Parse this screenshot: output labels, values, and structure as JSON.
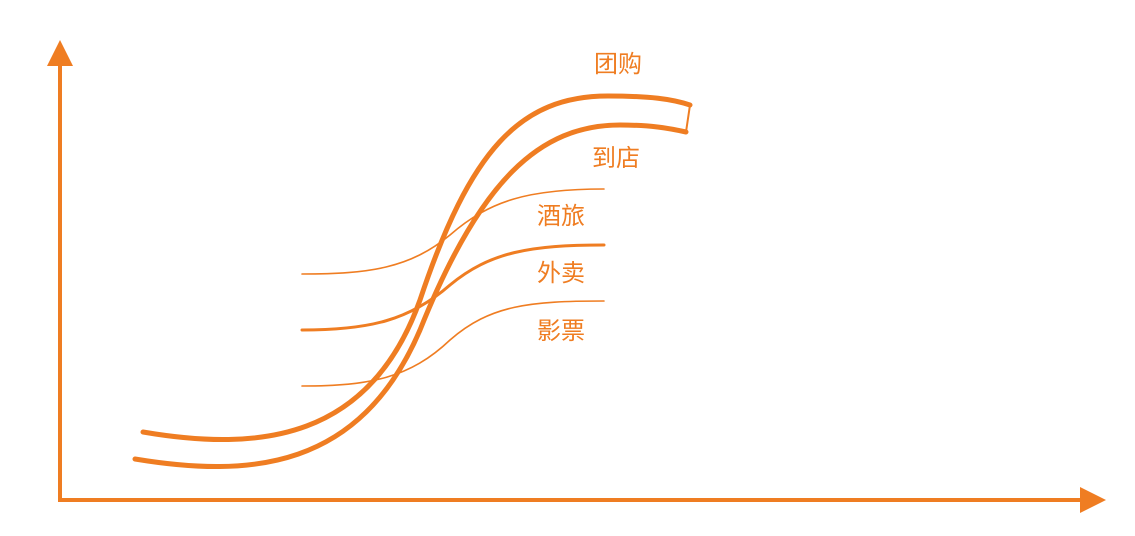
{
  "colors": {
    "accent": "#ef7d22",
    "background": "#ffffff"
  },
  "labels": {
    "group_buying": "团购",
    "in_store": "到店",
    "hotel_travel": "酒旅",
    "food_delivery": "外卖",
    "movie_tickets": "影票"
  },
  "axes": {
    "x_arrow_icon": "arrow-right-icon",
    "y_arrow_icon": "arrow-up-icon"
  }
}
